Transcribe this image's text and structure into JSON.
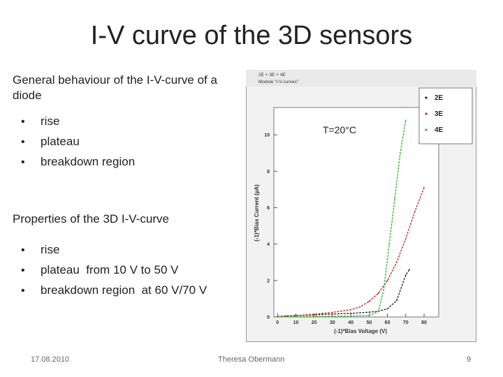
{
  "slide": {
    "title": "I-V curve of the 3D sensors",
    "intro": "General behaviour of the I-V-curve of a diode",
    "list1": [
      "rise",
      "plateau",
      "breakdown region"
    ],
    "properties_heading": "Properties of the 3D I-V-curve",
    "list2": [
      "rise",
      "plateau  from 10 V to 50 V",
      "breakdown region  at 60 V/70 V"
    ],
    "temperature_label": "T=20°C",
    "footer": {
      "date": "17.08.2010",
      "author": "Theresa Obermann",
      "page": "9"
    }
  },
  "chart_data": {
    "type": "line",
    "title": "2E + 3E + 4E",
    "subtitle": "Module \"I-V-curves\"",
    "xlabel": "(-1)*Bias Voltage (V)",
    "ylabel": "(-1)*Bias Current (µA)",
    "xlim": [
      -2,
      88
    ],
    "ylim": [
      0,
      11.5
    ],
    "xticks": [
      0,
      10,
      20,
      30,
      40,
      50,
      60,
      70,
      80
    ],
    "yticks": [
      0,
      2,
      4,
      6,
      8,
      10
    ],
    "legend_position": "top-right",
    "series": [
      {
        "name": "2E",
        "color": "#222222",
        "x": [
          0,
          5,
          10,
          20,
          30,
          40,
          50,
          55,
          60,
          65,
          70,
          72
        ],
        "y": [
          0.03,
          0.06,
          0.08,
          0.12,
          0.16,
          0.2,
          0.26,
          0.32,
          0.45,
          0.9,
          2.3,
          2.6
        ]
      },
      {
        "name": "3E",
        "color": "#cc2222",
        "x": [
          0,
          5,
          10,
          20,
          30,
          40,
          45,
          50,
          55,
          60,
          65,
          70,
          75,
          80
        ],
        "y": [
          0.02,
          0.05,
          0.08,
          0.15,
          0.25,
          0.4,
          0.55,
          0.85,
          1.3,
          2.0,
          3.0,
          4.3,
          5.8,
          7.1
        ]
      },
      {
        "name": "4E",
        "color": "#22bb22",
        "x": [
          0,
          10,
          20,
          30,
          40,
          50,
          55,
          58,
          61,
          64,
          67,
          70
        ],
        "y": [
          0.01,
          0.02,
          0.03,
          0.04,
          0.05,
          0.08,
          0.3,
          1.5,
          4.0,
          6.5,
          9.0,
          10.8
        ]
      }
    ]
  }
}
